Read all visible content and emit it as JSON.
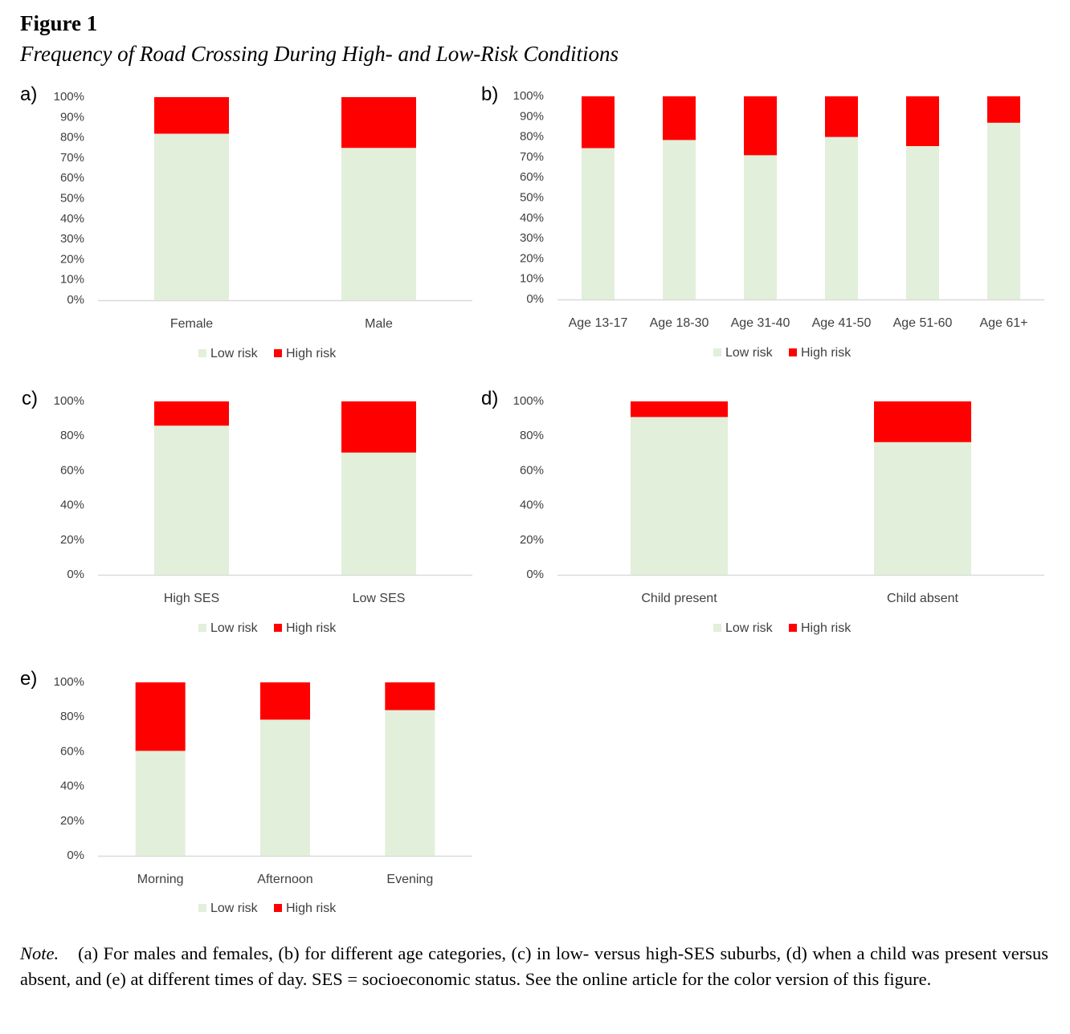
{
  "figure": {
    "label": "Figure 1",
    "title": "Frequency of Road Crossing During High- and Low-Risk Conditions"
  },
  "colors": {
    "low_risk": "#e2efda",
    "high_risk": "#ff0000",
    "axis": "#d9d9d9",
    "text": "#404040"
  },
  "chart_data": [
    {
      "panel": "a)",
      "type": "bar",
      "stacked": true,
      "categories": [
        "Female",
        "Male"
      ],
      "series": [
        {
          "name": "Low risk",
          "values": [
            82,
            75
          ]
        },
        {
          "name": "High risk",
          "values": [
            18,
            25
          ]
        }
      ],
      "ylim": [
        0,
        100
      ],
      "yticks": [
        "0%",
        "10%",
        "20%",
        "30%",
        "40%",
        "50%",
        "60%",
        "70%",
        "80%",
        "90%",
        "100%"
      ],
      "grid": false,
      "legend": "bottom"
    },
    {
      "panel": "b)",
      "type": "bar",
      "stacked": true,
      "categories": [
        "Age 13-17",
        "Age 18-30",
        "Age 31-40",
        "Age 41-50",
        "Age 51-60",
        "Age 61+"
      ],
      "series": [
        {
          "name": "Low risk",
          "values": [
            74.5,
            78.5,
            71,
            80,
            75.5,
            87
          ]
        },
        {
          "name": "High risk",
          "values": [
            25.5,
            21.5,
            29,
            20,
            24.5,
            13
          ]
        }
      ],
      "ylim": [
        0,
        100
      ],
      "yticks": [
        "0%",
        "10%",
        "20%",
        "30%",
        "40%",
        "50%",
        "60%",
        "70%",
        "80%",
        "90%",
        "100%"
      ],
      "grid": false,
      "legend": "bottom"
    },
    {
      "panel": "c)",
      "type": "bar",
      "stacked": true,
      "categories": [
        "High SES",
        "Low SES"
      ],
      "series": [
        {
          "name": "Low risk",
          "values": [
            86,
            70.5
          ]
        },
        {
          "name": "High risk",
          "values": [
            14,
            29.5
          ]
        }
      ],
      "ylim": [
        0,
        100
      ],
      "yticks": [
        "0%",
        "20%",
        "40%",
        "60%",
        "80%",
        "100%"
      ],
      "grid": false,
      "legend": "bottom"
    },
    {
      "panel": "d)",
      "type": "bar",
      "stacked": true,
      "categories": [
        "Child present",
        "Child absent"
      ],
      "series": [
        {
          "name": "Low risk",
          "values": [
            91,
            76.5
          ]
        },
        {
          "name": "High risk",
          "values": [
            9,
            23.5
          ]
        }
      ],
      "ylim": [
        0,
        100
      ],
      "yticks": [
        "0%",
        "20%",
        "40%",
        "60%",
        "80%",
        "100%"
      ],
      "grid": false,
      "legend": "bottom"
    },
    {
      "panel": "e)",
      "type": "bar",
      "stacked": true,
      "categories": [
        "Morning",
        "Afternoon",
        "Evening"
      ],
      "series": [
        {
          "name": "Low risk",
          "values": [
            60.5,
            78.5,
            84
          ]
        },
        {
          "name": "High risk",
          "values": [
            39.5,
            21.5,
            16
          ]
        }
      ],
      "ylim": [
        0,
        100
      ],
      "yticks": [
        "0%",
        "20%",
        "40%",
        "60%",
        "80%",
        "100%"
      ],
      "grid": false,
      "legend": "bottom"
    }
  ],
  "note": {
    "label": "Note.",
    "text": "(a) For males and females, (b) for different age categories, (c) in low- versus high-SES suburbs, (d) when a child was present versus absent, and (e) at different times of day. SES = socioeconomic status. See the online article for the color version of this figure."
  }
}
